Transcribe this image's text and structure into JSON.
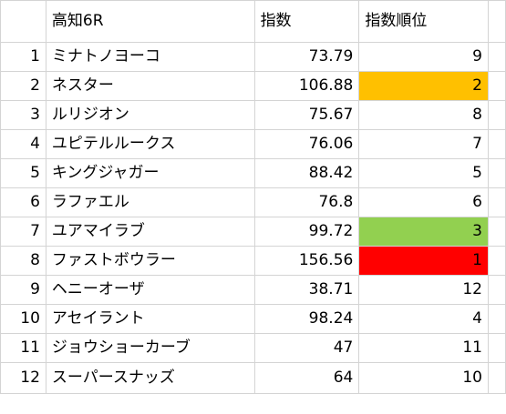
{
  "header": {
    "race": "高知6R",
    "index_label": "指数",
    "rank_label": "指数順位"
  },
  "colors": {
    "grid": "#d4d4d4",
    "rank_1": "#ff0000",
    "rank_2": "#ffc000",
    "rank_3": "#92d050"
  },
  "rows": [
    {
      "no": "1",
      "name": "ミナトノヨーコ",
      "index": "73.79",
      "rank": "9",
      "highlight": ""
    },
    {
      "no": "2",
      "name": "ネスター",
      "index": "106.88",
      "rank": "2",
      "highlight": "#ffc000"
    },
    {
      "no": "3",
      "name": "ルリジオン",
      "index": "75.67",
      "rank": "8",
      "highlight": ""
    },
    {
      "no": "4",
      "name": "ユピテルルークス",
      "index": "76.06",
      "rank": "7",
      "highlight": ""
    },
    {
      "no": "5",
      "name": "キングジャガー",
      "index": "88.42",
      "rank": "5",
      "highlight": ""
    },
    {
      "no": "6",
      "name": "ラファエル",
      "index": "76.8",
      "rank": "6",
      "highlight": ""
    },
    {
      "no": "7",
      "name": "ユアマイラブ",
      "index": "99.72",
      "rank": "3",
      "highlight": "#92d050"
    },
    {
      "no": "8",
      "name": "ファストボウラー",
      "index": "156.56",
      "rank": "1",
      "highlight": "#ff0000"
    },
    {
      "no": "9",
      "name": "ヘニーオーザ",
      "index": "38.71",
      "rank": "12",
      "highlight": ""
    },
    {
      "no": "10",
      "name": "アセイラント",
      "index": "98.24",
      "rank": "4",
      "highlight": ""
    },
    {
      "no": "11",
      "name": "ジョウショーカーブ",
      "index": "47",
      "rank": "11",
      "highlight": ""
    },
    {
      "no": "12",
      "name": "スーパースナッズ",
      "index": "64",
      "rank": "10",
      "highlight": ""
    }
  ]
}
